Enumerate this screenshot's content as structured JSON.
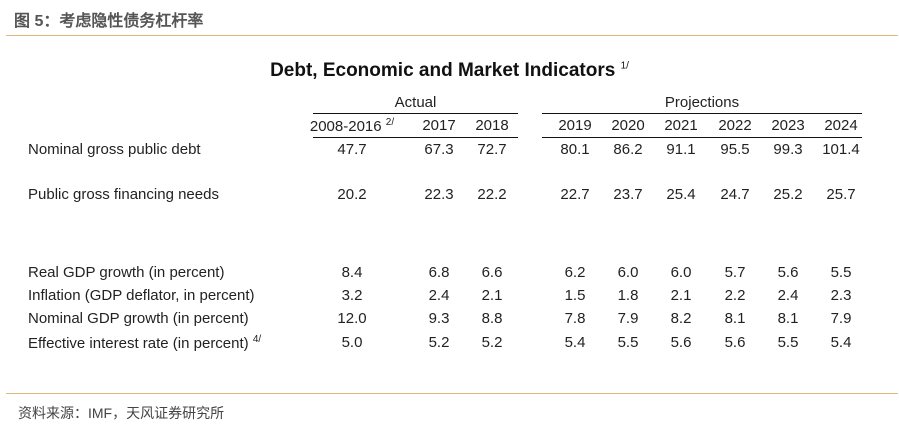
{
  "figure": {
    "title": "图 5：考虑隐性债务杠杆率",
    "source": "资料来源：IMF，天风证券研究所"
  },
  "table": {
    "title": "Debt, Economic and Market Indicators",
    "title_note": "1/",
    "groups": {
      "actual": "Actual",
      "projections": "Projections"
    },
    "columns": [
      "2008-2016",
      "2017",
      "2018",
      "2019",
      "2020",
      "2021",
      "2022",
      "2023",
      "2024"
    ],
    "first_column_note": "2/",
    "rows": [
      {
        "label": "Nominal gross public debt",
        "note": "",
        "values": [
          "47.7",
          "67.3",
          "72.7",
          "80.1",
          "86.2",
          "91.1",
          "95.5",
          "99.3",
          "101.4"
        ]
      },
      {
        "label": "Public gross financing needs",
        "note": "",
        "values": [
          "20.2",
          "22.3",
          "22.2",
          "22.7",
          "23.7",
          "25.4",
          "24.7",
          "25.2",
          "25.7"
        ]
      },
      {
        "label": "Real GDP growth (in percent)",
        "note": "",
        "values": [
          "8.4",
          "6.8",
          "6.6",
          "6.2",
          "6.0",
          "6.0",
          "5.7",
          "5.6",
          "5.5"
        ]
      },
      {
        "label": "Inflation (GDP deflator, in percent)",
        "note": "",
        "values": [
          "3.2",
          "2.4",
          "2.1",
          "1.5",
          "1.8",
          "2.1",
          "2.2",
          "2.4",
          "2.3"
        ]
      },
      {
        "label": "Nominal GDP growth (in percent)",
        "note": "",
        "values": [
          "12.0",
          "9.3",
          "8.8",
          "7.8",
          "7.9",
          "8.2",
          "8.1",
          "8.1",
          "7.9"
        ]
      },
      {
        "label": "Effective interest rate (in percent)",
        "note": "4/",
        "values": [
          "5.0",
          "5.2",
          "5.2",
          "5.4",
          "5.5",
          "5.6",
          "5.6",
          "5.5",
          "5.4"
        ]
      }
    ]
  }
}
